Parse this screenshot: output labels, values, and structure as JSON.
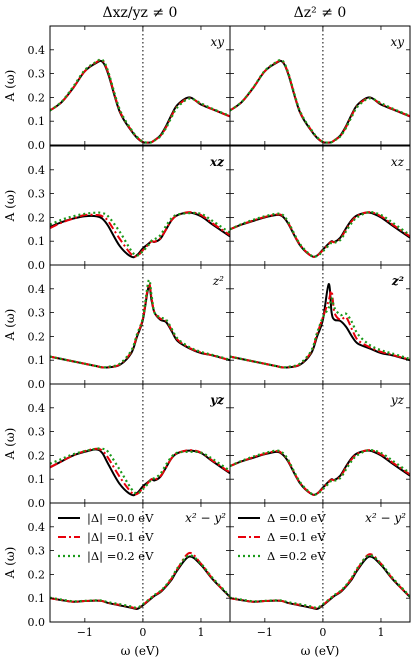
{
  "chart_data": {
    "type": "line",
    "layout": "2 columns x 5 rows of line plots",
    "column_titles": [
      "Δxz/yz ≠ 0",
      "Δz² ≠ 0"
    ],
    "xlabel": "ω (eV)",
    "ylabel": "A (ω)",
    "xlim": [
      -1.6,
      1.5
    ],
    "xticks": [
      -1,
      0,
      1
    ],
    "xtick_labels": [
      "−1",
      "0",
      "1"
    ],
    "ylim": [
      0,
      0.5
    ],
    "yticks": [
      0.0,
      0.1,
      0.2,
      0.3,
      0.4
    ],
    "ytick_labels": [
      "0.0",
      "0.1",
      "0.2",
      "0.3",
      "0.4"
    ],
    "vertical_dotted_line_x": 0,
    "rows": [
      {
        "orbital": "xy"
      },
      {
        "orbital": "xz"
      },
      {
        "orbital": "z2"
      },
      {
        "orbital": "yz"
      },
      {
        "orbital": "x2-y2"
      }
    ],
    "orbital_labels": {
      "left": [
        "xy",
        "xz",
        "z²",
        "yz",
        "x² − y²"
      ],
      "right": [
        "xy",
        "xz",
        "z²",
        "yz",
        "x² − y²"
      ],
      "left_bold": [
        false,
        true,
        false,
        true,
        false
      ],
      "right_bold": [
        false,
        false,
        true,
        false,
        false
      ]
    },
    "legends": {
      "left": [
        "|Δ| =0.0 eV",
        "|Δ| =0.1 eV",
        "|Δ| =0.2 eV"
      ],
      "right": [
        "Δ =0.0 eV",
        "Δ =0.1 eV",
        "Δ =0.2 eV"
      ],
      "location": "top, bottom row panels"
    },
    "series_styles": [
      {
        "color": "#000000",
        "dash": "solid"
      },
      {
        "color": "#e8000b",
        "dash": "dashdot"
      },
      {
        "color": "#1a9a1a",
        "dash": "dotted"
      }
    ],
    "x": [
      -1.6,
      -1.4,
      -1.2,
      -1.0,
      -0.8,
      -0.7,
      -0.6,
      -0.4,
      -0.2,
      -0.1,
      0.0,
      0.1,
      0.15,
      0.2,
      0.3,
      0.4,
      0.5,
      0.6,
      0.8,
      1.0,
      1.2,
      1.5
    ],
    "panels": [
      {
        "row": 0,
        "column": 0,
        "series": [
          {
            "values": [
              0.145,
              0.18,
              0.24,
              0.31,
              0.345,
              0.35,
              0.3,
              0.14,
              0.06,
              0.03,
              0.012,
              0.01,
              0.012,
              0.02,
              0.04,
              0.08,
              0.13,
              0.17,
              0.2,
              0.17,
              0.15,
              0.12
            ]
          },
          {
            "values": [
              0.145,
              0.18,
              0.24,
              0.31,
              0.348,
              0.355,
              0.305,
              0.145,
              0.062,
              0.032,
              0.013,
              0.01,
              0.012,
              0.02,
              0.038,
              0.075,
              0.125,
              0.165,
              0.197,
              0.172,
              0.15,
              0.12
            ]
          },
          {
            "values": [
              0.145,
              0.182,
              0.245,
              0.315,
              0.35,
              0.358,
              0.31,
              0.15,
              0.065,
              0.034,
              0.014,
              0.01,
              0.012,
              0.019,
              0.036,
              0.072,
              0.12,
              0.16,
              0.195,
              0.175,
              0.152,
              0.122
            ]
          }
        ]
      },
      {
        "row": 0,
        "column": 1,
        "series": [
          {
            "values": [
              0.145,
              0.18,
              0.24,
              0.31,
              0.345,
              0.35,
              0.3,
              0.14,
              0.06,
              0.03,
              0.012,
              0.01,
              0.012,
              0.02,
              0.04,
              0.08,
              0.13,
              0.17,
              0.2,
              0.17,
              0.15,
              0.12
            ]
          },
          {
            "values": [
              0.145,
              0.18,
              0.24,
              0.31,
              0.347,
              0.352,
              0.303,
              0.143,
              0.062,
              0.031,
              0.013,
              0.01,
              0.012,
              0.02,
              0.038,
              0.076,
              0.126,
              0.166,
              0.198,
              0.173,
              0.151,
              0.121
            ]
          },
          {
            "values": [
              0.145,
              0.181,
              0.242,
              0.312,
              0.349,
              0.355,
              0.306,
              0.146,
              0.064,
              0.033,
              0.014,
              0.01,
              0.012,
              0.019,
              0.036,
              0.073,
              0.121,
              0.162,
              0.196,
              0.176,
              0.153,
              0.122
            ]
          }
        ]
      },
      {
        "row": 1,
        "column": 0,
        "series": [
          {
            "values": [
              0.16,
              0.18,
              0.195,
              0.205,
              0.205,
              0.195,
              0.165,
              0.08,
              0.035,
              0.042,
              0.07,
              0.09,
              0.1,
              0.097,
              0.11,
              0.15,
              0.19,
              0.21,
              0.22,
              0.205,
              0.17,
              0.12
            ]
          },
          {
            "values": [
              0.155,
              0.178,
              0.195,
              0.21,
              0.21,
              0.205,
              0.185,
              0.11,
              0.045,
              0.038,
              0.062,
              0.088,
              0.1,
              0.098,
              0.112,
              0.15,
              0.19,
              0.21,
              0.222,
              0.21,
              0.175,
              0.125
            ]
          },
          {
            "values": [
              0.17,
              0.19,
              0.205,
              0.215,
              0.22,
              0.218,
              0.205,
              0.14,
              0.06,
              0.04,
              0.058,
              0.085,
              0.102,
              0.108,
              0.125,
              0.165,
              0.198,
              0.212,
              0.218,
              0.215,
              0.185,
              0.135
            ]
          }
        ]
      },
      {
        "row": 1,
        "column": 1,
        "series": [
          {
            "values": [
              0.15,
              0.17,
              0.185,
              0.2,
              0.21,
              0.205,
              0.175,
              0.085,
              0.038,
              0.04,
              0.065,
              0.09,
              0.1,
              0.097,
              0.115,
              0.155,
              0.19,
              0.21,
              0.22,
              0.2,
              0.165,
              0.115
            ]
          },
          {
            "values": [
              0.15,
              0.17,
              0.187,
              0.202,
              0.212,
              0.208,
              0.178,
              0.087,
              0.038,
              0.04,
              0.062,
              0.088,
              0.098,
              0.096,
              0.11,
              0.15,
              0.185,
              0.208,
              0.222,
              0.205,
              0.17,
              0.12
            ]
          },
          {
            "values": [
              0.15,
              0.172,
              0.19,
              0.205,
              0.215,
              0.212,
              0.182,
              0.09,
              0.04,
              0.038,
              0.058,
              0.082,
              0.094,
              0.094,
              0.105,
              0.142,
              0.178,
              0.202,
              0.222,
              0.21,
              0.178,
              0.125
            ]
          }
        ]
      },
      {
        "row": 2,
        "column": 0,
        "series": [
          {
            "values": [
              0.115,
              0.105,
              0.095,
              0.085,
              0.075,
              0.07,
              0.07,
              0.08,
              0.13,
              0.2,
              0.27,
              0.41,
              0.35,
              0.3,
              0.27,
              0.26,
              0.22,
              0.18,
              0.15,
              0.13,
              0.12,
              0.1
            ]
          },
          {
            "values": [
              0.115,
              0.105,
              0.095,
              0.085,
              0.075,
              0.07,
              0.07,
              0.082,
              0.135,
              0.205,
              0.275,
              0.42,
              0.36,
              0.3,
              0.275,
              0.265,
              0.225,
              0.185,
              0.152,
              0.132,
              0.12,
              0.1
            ]
          },
          {
            "values": [
              0.115,
              0.105,
              0.095,
              0.085,
              0.075,
              0.07,
              0.072,
              0.085,
              0.14,
              0.21,
              0.28,
              0.435,
              0.37,
              0.3,
              0.28,
              0.27,
              0.23,
              0.19,
              0.155,
              0.135,
              0.122,
              0.102
            ]
          }
        ]
      },
      {
        "row": 2,
        "column": 1,
        "series": [
          {
            "values": [
              0.115,
              0.105,
              0.095,
              0.085,
              0.075,
              0.07,
              0.07,
              0.08,
              0.13,
              0.2,
              0.27,
              0.42,
              0.3,
              0.27,
              0.265,
              0.24,
              0.2,
              0.17,
              0.15,
              0.13,
              0.12,
              0.1
            ]
          },
          {
            "values": [
              0.115,
              0.105,
              0.095,
              0.085,
              0.075,
              0.07,
              0.07,
              0.082,
              0.135,
              0.21,
              0.28,
              0.35,
              0.39,
              0.3,
              0.27,
              0.28,
              0.23,
              0.185,
              0.155,
              0.135,
              0.122,
              0.102
            ]
          },
          {
            "values": [
              0.115,
              0.105,
              0.095,
              0.085,
              0.075,
              0.07,
              0.072,
              0.085,
              0.14,
              0.215,
              0.28,
              0.32,
              0.36,
              0.32,
              0.29,
              0.295,
              0.26,
              0.21,
              0.165,
              0.142,
              0.128,
              0.105
            ]
          }
        ]
      },
      {
        "row": 3,
        "column": 0,
        "series": [
          {
            "values": [
              0.15,
              0.175,
              0.2,
              0.215,
              0.225,
              0.21,
              0.165,
              0.08,
              0.035,
              0.042,
              0.07,
              0.09,
              0.1,
              0.095,
              0.11,
              0.15,
              0.19,
              0.21,
              0.22,
              0.21,
              0.175,
              0.125
            ]
          },
          {
            "values": [
              0.15,
              0.175,
              0.2,
              0.218,
              0.228,
              0.22,
              0.19,
              0.11,
              0.045,
              0.038,
              0.062,
              0.088,
              0.1,
              0.098,
              0.112,
              0.15,
              0.19,
              0.21,
              0.222,
              0.212,
              0.178,
              0.128
            ]
          },
          {
            "values": [
              0.165,
              0.185,
              0.205,
              0.218,
              0.228,
              0.228,
              0.215,
              0.14,
              0.06,
              0.04,
              0.058,
              0.085,
              0.1,
              0.105,
              0.122,
              0.162,
              0.196,
              0.212,
              0.215,
              0.212,
              0.185,
              0.135
            ]
          }
        ]
      },
      {
        "row": 3,
        "column": 1,
        "series": [
          {
            "values": [
              0.155,
              0.175,
              0.19,
              0.205,
              0.215,
              0.205,
              0.175,
              0.085,
              0.038,
              0.04,
              0.065,
              0.09,
              0.1,
              0.097,
              0.115,
              0.155,
              0.19,
              0.21,
              0.22,
              0.2,
              0.165,
              0.115
            ]
          },
          {
            "values": [
              0.155,
              0.175,
              0.192,
              0.207,
              0.218,
              0.208,
              0.178,
              0.087,
              0.038,
              0.04,
              0.062,
              0.088,
              0.098,
              0.096,
              0.11,
              0.15,
              0.185,
              0.208,
              0.222,
              0.205,
              0.17,
              0.12
            ]
          },
          {
            "values": [
              0.155,
              0.177,
              0.195,
              0.21,
              0.22,
              0.212,
              0.182,
              0.09,
              0.04,
              0.038,
              0.058,
              0.082,
              0.094,
              0.094,
              0.105,
              0.142,
              0.178,
              0.202,
              0.222,
              0.21,
              0.178,
              0.125
            ]
          }
        ]
      },
      {
        "row": 4,
        "column": 0,
        "series": [
          {
            "values": [
              0.1,
              0.092,
              0.085,
              0.088,
              0.09,
              0.088,
              0.08,
              0.07,
              0.06,
              0.055,
              0.07,
              0.09,
              0.1,
              0.11,
              0.125,
              0.15,
              0.18,
              0.22,
              0.275,
              0.24,
              0.18,
              0.105
            ]
          },
          {
            "values": [
              0.1,
              0.092,
              0.085,
              0.088,
              0.09,
              0.088,
              0.08,
              0.072,
              0.062,
              0.058,
              0.072,
              0.092,
              0.102,
              0.112,
              0.128,
              0.152,
              0.185,
              0.225,
              0.29,
              0.245,
              0.182,
              0.105
            ]
          },
          {
            "values": [
              0.102,
              0.094,
              0.087,
              0.089,
              0.091,
              0.09,
              0.083,
              0.075,
              0.065,
              0.06,
              0.075,
              0.094,
              0.104,
              0.114,
              0.13,
              0.155,
              0.188,
              0.228,
              0.28,
              0.245,
              0.185,
              0.108
            ]
          }
        ]
      },
      {
        "row": 4,
        "column": 1,
        "series": [
          {
            "values": [
              0.1,
              0.092,
              0.085,
              0.088,
              0.09,
              0.088,
              0.08,
              0.07,
              0.06,
              0.055,
              0.07,
              0.09,
              0.1,
              0.11,
              0.125,
              0.15,
              0.18,
              0.22,
              0.275,
              0.24,
              0.18,
              0.105
            ]
          },
          {
            "values": [
              0.1,
              0.092,
              0.085,
              0.088,
              0.09,
              0.088,
              0.08,
              0.072,
              0.062,
              0.058,
              0.072,
              0.092,
              0.102,
              0.112,
              0.128,
              0.152,
              0.185,
              0.225,
              0.285,
              0.245,
              0.182,
              0.105
            ]
          },
          {
            "values": [
              0.102,
              0.094,
              0.087,
              0.089,
              0.091,
              0.09,
              0.083,
              0.075,
              0.065,
              0.06,
              0.075,
              0.094,
              0.104,
              0.114,
              0.13,
              0.155,
              0.188,
              0.228,
              0.28,
              0.245,
              0.185,
              0.108
            ]
          }
        ]
      }
    ]
  }
}
